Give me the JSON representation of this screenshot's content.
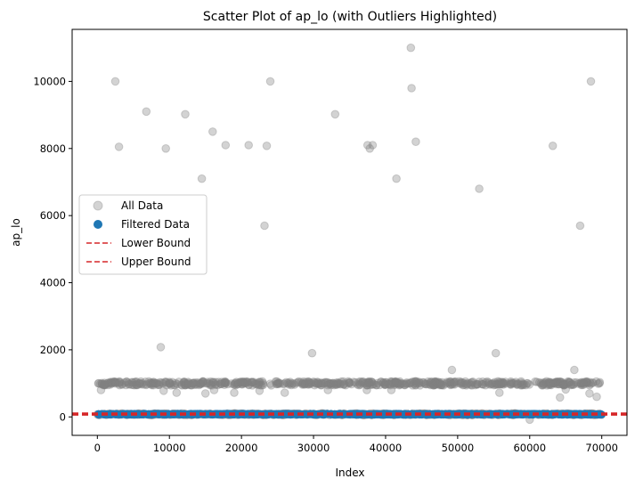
{
  "chart_data": {
    "type": "scatter",
    "title": "Scatter Plot of ap_lo (with Outliers Highlighted)",
    "xlabel": "Index",
    "ylabel": "ap_lo",
    "xlim": [
      -3500,
      73500
    ],
    "ylim": [
      -550,
      11550
    ],
    "xticks": [
      0,
      10000,
      20000,
      30000,
      40000,
      50000,
      60000,
      70000
    ],
    "yticks": [
      0,
      2000,
      4000,
      6000,
      8000,
      10000
    ],
    "legend": {
      "placement": "center-left"
    },
    "series": [
      {
        "name": "All Data",
        "kind": "scatter",
        "color": "#808080",
        "opacity": 0.35,
        "bands": [
          {
            "y_center": 1000,
            "spread": 60,
            "x_range": [
              0,
              70000
            ],
            "count": 650
          },
          {
            "y_center": 80,
            "spread": 25,
            "x_range": [
              0,
              70000
            ],
            "count": 420
          }
        ],
        "points": [
          [
            2500,
            10000
          ],
          [
            3000,
            8050
          ],
          [
            6800,
            9100
          ],
          [
            9500,
            8000
          ],
          [
            12200,
            9020
          ],
          [
            14500,
            7100
          ],
          [
            16000,
            8500
          ],
          [
            17800,
            8100
          ],
          [
            21000,
            8100
          ],
          [
            23500,
            8080
          ],
          [
            23200,
            5700
          ],
          [
            24000,
            10000
          ],
          [
            33000,
            9020
          ],
          [
            37500,
            8100
          ],
          [
            37800,
            8000
          ],
          [
            38200,
            8100
          ],
          [
            41500,
            7100
          ],
          [
            43500,
            11000
          ],
          [
            43600,
            9800
          ],
          [
            44200,
            8200
          ],
          [
            53000,
            6800
          ],
          [
            63200,
            8080
          ],
          [
            67000,
            5700
          ],
          [
            68500,
            10000
          ],
          [
            8800,
            2080
          ],
          [
            29800,
            1900
          ],
          [
            55300,
            1900
          ],
          [
            49200,
            1400
          ],
          [
            66200,
            1400
          ],
          [
            9200,
            780
          ],
          [
            11000,
            720
          ],
          [
            15000,
            700
          ],
          [
            16200,
            800
          ],
          [
            19000,
            720
          ],
          [
            22500,
            780
          ],
          [
            26000,
            720
          ],
          [
            32000,
            800
          ],
          [
            37400,
            800
          ],
          [
            40800,
            800
          ],
          [
            55800,
            720
          ],
          [
            64200,
            580
          ],
          [
            65000,
            820
          ],
          [
            68300,
            700
          ],
          [
            69300,
            600
          ],
          [
            500,
            800
          ],
          [
            60000,
            -80
          ]
        ]
      },
      {
        "name": "Filtered Data",
        "kind": "scatter",
        "color": "#1f77b4",
        "band": {
          "y_center": 80,
          "spread": 15,
          "x_range": [
            0,
            70000
          ],
          "count": 1000
        }
      },
      {
        "name": "Lower Bound",
        "kind": "hline",
        "y": 65,
        "color": "#d62728",
        "dash": true
      },
      {
        "name": "Upper Bound",
        "kind": "hline",
        "y": 105,
        "color": "#d62728",
        "dash": true
      }
    ]
  }
}
